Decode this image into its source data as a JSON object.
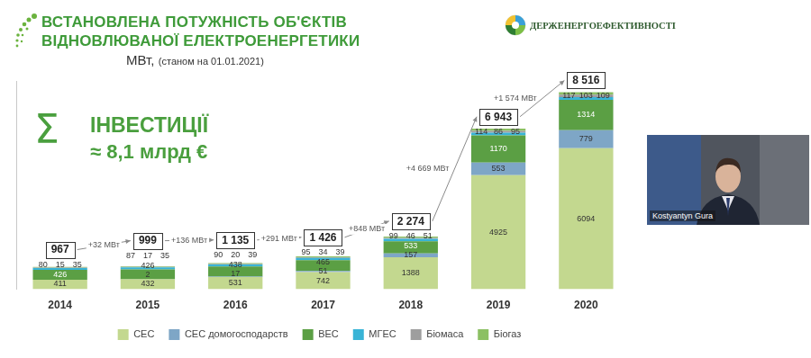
{
  "chart_data": {
    "type": "bar",
    "title": [
      "ВСТАНОВЛЕНА ПОТУЖНІСТЬ ОБ'ЄКТІВ",
      "ВІДНОВЛЮВАНОЇ ЕЛЕКТРОЕНЕРГЕТИКИ"
    ],
    "subtitle": [
      "МВт,",
      "(станом на 01.01.2021)"
    ],
    "logo": "ДЕРЖЕНЕРГОЕФЕКТИВНОСТІ",
    "annotations": {
      "investments": {
        "symbol": "Σ",
        "heading": "ІНВЕСТИЦІЇ",
        "text": "≈ 8,1 млрд €"
      },
      "totals": [
        967,
        999,
        {
          "value": 1135,
          "label": "1 135"
        },
        {
          "value": 1426,
          "label": "1 426"
        },
        {
          "value": 2274,
          "label": "2 274"
        },
        {
          "value": 6943,
          "label": "6 943"
        },
        {
          "value": 8516,
          "label": "8 516"
        }
      ],
      "increments": [
        "+32 МВт",
        "+136 МВт",
        "+291 МВт",
        "+848 МВт",
        "+4 669 МВт",
        "+1 574 МВт"
      ]
    },
    "categories": [
      "2014",
      "2015",
      "2016",
      "2017",
      "2018",
      "2019",
      "2020"
    ],
    "series": [
      {
        "name": "СЕС",
        "color": "#c3d88f",
        "values": [
          411,
          432,
          531,
          742,
          1388,
          4925,
          6094
        ]
      },
      {
        "name": "СЕС домогосподарств",
        "color": "#7ea6c6",
        "values": [
          null,
          2,
          17,
          51,
          157,
          553,
          779
        ]
      },
      {
        "name": "ВЕС",
        "color": "#5b9f44",
        "values": [
          426,
          426,
          438,
          465,
          533,
          1170,
          1314
        ]
      },
      {
        "name": "МГЕС",
        "color": "#39b4d6",
        "values": [
          80,
          87,
          90,
          95,
          99,
          114,
          117
        ]
      },
      {
        "name": "Біомаса",
        "color": "#9e9e9e",
        "values": [
          15,
          17,
          20,
          34,
          46,
          86,
          103
        ]
      },
      {
        "name": "Біогаз",
        "color": "#8cc063",
        "values": [
          35,
          35,
          39,
          39,
          51,
          95,
          109
        ]
      }
    ],
    "stacked": true,
    "data_labels": true,
    "legend": "bottom",
    "grid": false,
    "tick_labels": "x",
    "ylim": [
      0,
      9000
    ]
  },
  "video": {
    "name": "Kostyantyn Gura"
  }
}
